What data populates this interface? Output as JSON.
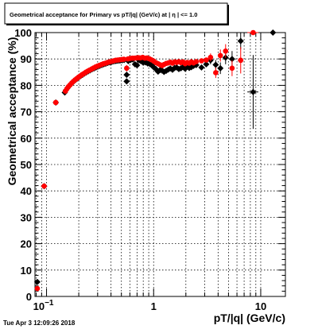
{
  "chart_data": {
    "type": "scatter",
    "title": "Geometrical acceptance for Primary vs pT/|q| (GeV/c) at | η | <= 1.0",
    "xlabel": "pT/|q| (GeV/c)",
    "ylabel": "Geometrical acceptance (%)",
    "x_scale": "log",
    "xlim": [
      0.078,
      17
    ],
    "ylim": [
      0,
      100
    ],
    "y_ticks": [
      0,
      10,
      20,
      30,
      40,
      50,
      60,
      70,
      80,
      90,
      100
    ],
    "x_tick_labels": [
      {
        "value": 0.1,
        "label": "10",
        "exp": "−1"
      },
      {
        "value": 1,
        "label": "1",
        "exp": ""
      },
      {
        "value": 10,
        "label": "10",
        "exp": ""
      }
    ],
    "grid": true,
    "timestamp": "Tue Apr  3 12:09:26 2018",
    "series": [
      {
        "color": "#000000",
        "marker": "diamond",
        "points": [
          {
            "x": 0.082,
            "y": 5.5,
            "yerr": 0.8
          },
          {
            "x": 0.095,
            "y": 41.8,
            "xerr": 0.006
          },
          {
            "x": 0.122,
            "y": 73.5,
            "xerr": 0.007
          },
          {
            "x": 0.148,
            "y": 77.3,
            "xerr": 0.003
          },
          {
            "x": 0.152,
            "y": 78.2
          },
          {
            "x": 0.157,
            "y": 79.0
          },
          {
            "x": 0.162,
            "y": 79.7
          },
          {
            "x": 0.168,
            "y": 80.4
          },
          {
            "x": 0.174,
            "y": 81.0
          },
          {
            "x": 0.18,
            "y": 81.6
          },
          {
            "x": 0.187,
            "y": 82.1
          },
          {
            "x": 0.194,
            "y": 82.6
          },
          {
            "x": 0.201,
            "y": 83.1
          },
          {
            "x": 0.209,
            "y": 83.6
          },
          {
            "x": 0.217,
            "y": 84.0
          },
          {
            "x": 0.226,
            "y": 84.5
          },
          {
            "x": 0.235,
            "y": 84.9
          },
          {
            "x": 0.245,
            "y": 85.3
          },
          {
            "x": 0.255,
            "y": 85.7
          },
          {
            "x": 0.266,
            "y": 86.1
          },
          {
            "x": 0.277,
            "y": 86.4
          },
          {
            "x": 0.289,
            "y": 86.8
          },
          {
            "x": 0.301,
            "y": 87.1
          },
          {
            "x": 0.314,
            "y": 87.4
          },
          {
            "x": 0.328,
            "y": 87.7
          },
          {
            "x": 0.342,
            "y": 88.0
          },
          {
            "x": 0.357,
            "y": 88.2
          },
          {
            "x": 0.373,
            "y": 88.5
          },
          {
            "x": 0.39,
            "y": 88.7
          },
          {
            "x": 0.407,
            "y": 88.9
          },
          {
            "x": 0.425,
            "y": 89.1
          },
          {
            "x": 0.444,
            "y": 89.2
          },
          {
            "x": 0.464,
            "y": 89.3
          },
          {
            "x": 0.485,
            "y": 89.4
          },
          {
            "x": 0.507,
            "y": 89.5
          },
          {
            "x": 0.53,
            "y": 89.6
          },
          {
            "x": 0.56,
            "y": 81.5,
            "yerr": 1.0
          },
          {
            "x": 0.56,
            "y": 84.0
          },
          {
            "x": 0.58,
            "y": 89.2
          },
          {
            "x": 0.61,
            "y": 89.6
          },
          {
            "x": 0.64,
            "y": 89.8
          },
          {
            "x": 0.67,
            "y": 88.0
          },
          {
            "x": 0.7,
            "y": 87.6
          },
          {
            "x": 0.73,
            "y": 89.5
          },
          {
            "x": 0.76,
            "y": 89.2
          },
          {
            "x": 0.8,
            "y": 88.6
          },
          {
            "x": 0.84,
            "y": 88.7
          },
          {
            "x": 0.88,
            "y": 88.3
          },
          {
            "x": 0.92,
            "y": 88.1
          },
          {
            "x": 0.96,
            "y": 87.6
          },
          {
            "x": 1.0,
            "y": 86.9
          },
          {
            "x": 1.05,
            "y": 86.2
          },
          {
            "x": 1.1,
            "y": 85.2
          },
          {
            "x": 1.15,
            "y": 85.8
          },
          {
            "x": 1.2,
            "y": 85.6
          },
          {
            "x": 1.25,
            "y": 85.1
          },
          {
            "x": 1.31,
            "y": 85.5
          },
          {
            "x": 1.37,
            "y": 86.0
          },
          {
            "x": 1.43,
            "y": 86.4
          },
          {
            "x": 1.5,
            "y": 85.9
          },
          {
            "x": 1.57,
            "y": 86.6
          },
          {
            "x": 1.64,
            "y": 86.8
          },
          {
            "x": 1.72,
            "y": 86.2
          },
          {
            "x": 1.8,
            "y": 86.5
          },
          {
            "x": 1.88,
            "y": 86.9
          },
          {
            "x": 1.97,
            "y": 86.3
          },
          {
            "x": 2.06,
            "y": 87.1
          },
          {
            "x": 2.15,
            "y": 86.6
          },
          {
            "x": 2.25,
            "y": 86.9
          },
          {
            "x": 2.36,
            "y": 87.4
          },
          {
            "x": 2.5,
            "y": 87.7
          },
          {
            "x": 2.8,
            "y": 86.8
          },
          {
            "x": 3.1,
            "y": 88.0
          },
          {
            "x": 3.4,
            "y": 89.5,
            "yerr": 1.5
          },
          {
            "x": 3.8,
            "y": 87.8,
            "yerr": 1.8
          },
          {
            "x": 4.2,
            "y": 86.5,
            "yerr": 2.2
          },
          {
            "x": 4.7,
            "y": 90.5,
            "yerr": 2.5
          },
          {
            "x": 5.4,
            "y": 90.0,
            "yerr": 3.0
          },
          {
            "x": 6.5,
            "y": 96.8,
            "yerr": 3.2,
            "xerr": 0.4
          },
          {
            "x": 8.5,
            "y": 77.5,
            "yerr": 14.0,
            "xerr": 1.0
          },
          {
            "x": 13.0,
            "y": 100.0,
            "xerr": 1.5
          }
        ]
      },
      {
        "color": "#ff0000",
        "marker": "circle",
        "points": [
          {
            "x": 0.082,
            "y": 3.0,
            "yerr": 0.6
          },
          {
            "x": 0.095,
            "y": 41.8,
            "xerr": 0.006
          },
          {
            "x": 0.122,
            "y": 73.5,
            "xerr": 0.007
          },
          {
            "x": 0.15,
            "y": 77.8
          },
          {
            "x": 0.155,
            "y": 78.7
          },
          {
            "x": 0.16,
            "y": 79.5
          },
          {
            "x": 0.166,
            "y": 80.2
          },
          {
            "x": 0.172,
            "y": 80.9
          },
          {
            "x": 0.178,
            "y": 81.5
          },
          {
            "x": 0.185,
            "y": 82.1
          },
          {
            "x": 0.192,
            "y": 82.6
          },
          {
            "x": 0.199,
            "y": 83.1
          },
          {
            "x": 0.207,
            "y": 83.6
          },
          {
            "x": 0.215,
            "y": 84.1
          },
          {
            "x": 0.224,
            "y": 84.5
          },
          {
            "x": 0.233,
            "y": 85.0
          },
          {
            "x": 0.243,
            "y": 85.4
          },
          {
            "x": 0.253,
            "y": 85.8
          },
          {
            "x": 0.264,
            "y": 86.2
          },
          {
            "x": 0.275,
            "y": 86.6
          },
          {
            "x": 0.287,
            "y": 87.0
          },
          {
            "x": 0.299,
            "y": 87.3
          },
          {
            "x": 0.312,
            "y": 87.6
          },
          {
            "x": 0.326,
            "y": 87.9
          },
          {
            "x": 0.34,
            "y": 88.2
          },
          {
            "x": 0.355,
            "y": 88.4
          },
          {
            "x": 0.371,
            "y": 88.7
          },
          {
            "x": 0.388,
            "y": 88.9
          },
          {
            "x": 0.405,
            "y": 89.1
          },
          {
            "x": 0.423,
            "y": 89.3
          },
          {
            "x": 0.442,
            "y": 89.5
          },
          {
            "x": 0.462,
            "y": 89.6
          },
          {
            "x": 0.483,
            "y": 89.7
          },
          {
            "x": 0.505,
            "y": 89.8
          },
          {
            "x": 0.528,
            "y": 89.9
          },
          {
            "x": 0.56,
            "y": 86.5,
            "yerr": 1.2
          },
          {
            "x": 0.575,
            "y": 90.0
          },
          {
            "x": 0.6,
            "y": 90.2
          },
          {
            "x": 0.63,
            "y": 90.3
          },
          {
            "x": 0.66,
            "y": 90.3
          },
          {
            "x": 0.69,
            "y": 90.4
          },
          {
            "x": 0.72,
            "y": 90.5
          },
          {
            "x": 0.75,
            "y": 90.4
          },
          {
            "x": 0.79,
            "y": 90.6
          },
          {
            "x": 0.83,
            "y": 90.3
          },
          {
            "x": 0.87,
            "y": 90.4
          },
          {
            "x": 0.91,
            "y": 90.1
          },
          {
            "x": 0.95,
            "y": 89.7
          },
          {
            "x": 1.0,
            "y": 89.2
          },
          {
            "x": 1.05,
            "y": 88.6
          },
          {
            "x": 1.1,
            "y": 88.2
          },
          {
            "x": 1.15,
            "y": 87.8
          },
          {
            "x": 1.2,
            "y": 87.5
          },
          {
            "x": 1.25,
            "y": 87.9
          },
          {
            "x": 1.31,
            "y": 88.3
          },
          {
            "x": 1.37,
            "y": 88.5
          },
          {
            "x": 1.43,
            "y": 88.8
          },
          {
            "x": 1.5,
            "y": 88.4
          },
          {
            "x": 1.57,
            "y": 88.9
          },
          {
            "x": 1.64,
            "y": 88.7
          },
          {
            "x": 1.72,
            "y": 89.0
          },
          {
            "x": 1.8,
            "y": 88.6
          },
          {
            "x": 1.88,
            "y": 88.9
          },
          {
            "x": 1.97,
            "y": 88.2
          },
          {
            "x": 2.06,
            "y": 88.7
          },
          {
            "x": 2.15,
            "y": 88.4
          },
          {
            "x": 2.25,
            "y": 88.9
          },
          {
            "x": 2.36,
            "y": 88.5
          },
          {
            "x": 2.5,
            "y": 89.0
          },
          {
            "x": 2.8,
            "y": 89.3
          },
          {
            "x": 3.1,
            "y": 89.6
          },
          {
            "x": 3.4,
            "y": 90.6,
            "yerr": 1.5
          },
          {
            "x": 3.8,
            "y": 84.8,
            "yerr": 2.0
          },
          {
            "x": 4.2,
            "y": 91.3,
            "yerr": 2.3
          },
          {
            "x": 4.7,
            "y": 93.0,
            "yerr": 2.6
          },
          {
            "x": 5.4,
            "y": 86.5,
            "yerr": 3.0
          },
          {
            "x": 6.5,
            "y": 89.5,
            "yerr": 5.0,
            "xerr": 0.4
          },
          {
            "x": 8.5,
            "y": 100.0,
            "xerr": 1.0
          }
        ]
      }
    ]
  }
}
